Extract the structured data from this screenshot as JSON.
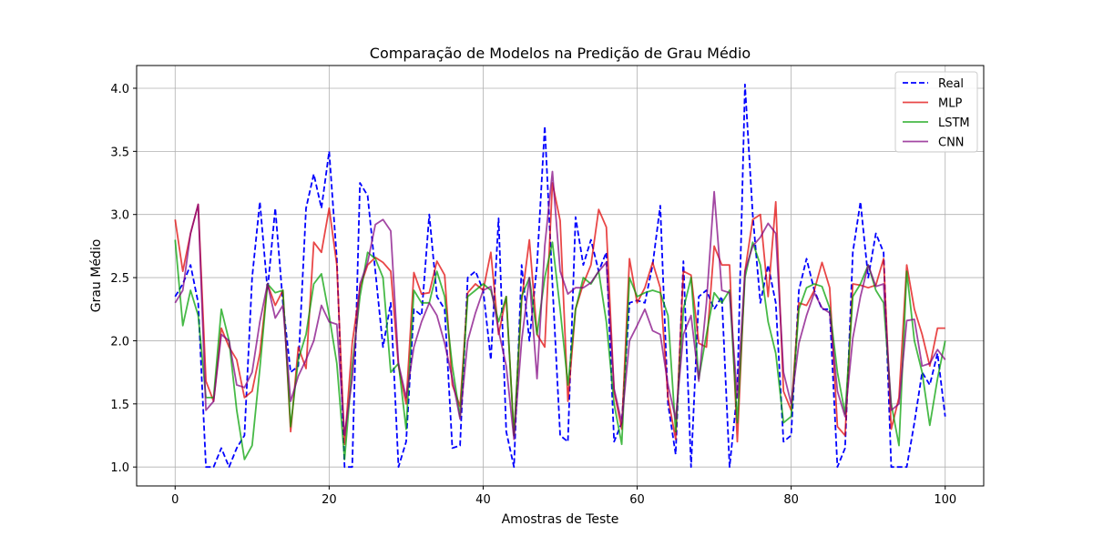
{
  "chart_data": {
    "type": "line",
    "title": "Comparação de Modelos na Predição de Grau Médio",
    "xlabel": "Amostras de Teste",
    "ylabel": "Grau Médio",
    "xlim": [
      -5,
      105
    ],
    "ylim": [
      0.85,
      4.18
    ],
    "xticks": [
      0,
      20,
      40,
      60,
      80,
      100
    ],
    "yticks": [
      1.0,
      1.5,
      2.0,
      2.5,
      3.0,
      3.5,
      4.0
    ],
    "ytick_labels": [
      "1.0",
      "1.5",
      "2.0",
      "2.5",
      "3.0",
      "3.5",
      "4.0"
    ],
    "grid": true,
    "legend_position": "top-right",
    "series": [
      {
        "name": "Real",
        "color": "#0000ff",
        "style": "dashed",
        "opacity": 1,
        "values": [
          2.35,
          2.45,
          2.6,
          2.3,
          1.0,
          1.0,
          1.15,
          1.0,
          1.15,
          1.25,
          2.5,
          3.1,
          2.4,
          3.05,
          2.3,
          1.75,
          1.8,
          3.05,
          3.32,
          3.05,
          3.5,
          2.65,
          1.0,
          1.0,
          3.25,
          3.15,
          2.55,
          1.95,
          2.3,
          1.0,
          1.2,
          2.25,
          2.2,
          3.0,
          2.35,
          2.25,
          1.15,
          1.17,
          2.5,
          2.55,
          2.4,
          1.85,
          2.97,
          1.28,
          1.0,
          2.6,
          2.0,
          2.6,
          3.7,
          2.45,
          1.25,
          1.2,
          2.98,
          2.6,
          2.8,
          2.55,
          2.7,
          1.2,
          1.35,
          2.3,
          2.32,
          2.3,
          2.6,
          3.07,
          1.5,
          1.1,
          2.63,
          1.0,
          2.35,
          2.4,
          2.25,
          2.35,
          1.0,
          1.6,
          4.03,
          3.0,
          2.3,
          2.6,
          2.3,
          1.2,
          1.25,
          2.4,
          2.65,
          2.4,
          2.25,
          2.25,
          1.0,
          1.15,
          2.7,
          3.1,
          2.5,
          2.85,
          2.7,
          1.0,
          1.0,
          1.0,
          1.35,
          1.75,
          1.65,
          1.9,
          1.4
        ]
      },
      {
        "name": "MLP",
        "color": "#e00000",
        "style": "solid",
        "opacity": 0.72,
        "values": [
          2.96,
          2.55,
          2.85,
          3.08,
          1.68,
          1.52,
          2.1,
          1.95,
          1.85,
          1.55,
          1.6,
          1.9,
          2.45,
          2.28,
          2.4,
          1.28,
          1.95,
          1.78,
          2.78,
          2.7,
          3.05,
          2.6,
          1.18,
          1.98,
          2.42,
          2.6,
          2.66,
          2.62,
          2.55,
          1.8,
          1.5,
          2.54,
          2.37,
          2.38,
          2.63,
          2.52,
          1.65,
          1.48,
          2.38,
          2.45,
          2.4,
          2.7,
          2.05,
          2.35,
          1.25,
          2.32,
          2.8,
          2.05,
          1.95,
          3.25,
          2.95,
          1.52,
          2.25,
          2.45,
          2.6,
          3.04,
          2.9,
          1.6,
          1.3,
          2.65,
          2.3,
          2.42,
          2.62,
          2.42,
          1.55,
          1.22,
          2.55,
          2.52,
          1.98,
          1.95,
          2.75,
          2.6,
          2.6,
          1.2,
          2.55,
          2.96,
          3.0,
          2.35,
          3.1,
          1.6,
          1.45,
          2.3,
          2.28,
          2.4,
          2.62,
          2.42,
          1.32,
          1.25,
          2.45,
          2.44,
          2.42,
          2.44,
          2.65,
          1.3,
          1.55,
          2.6,
          2.25,
          2.05,
          1.8,
          2.1,
          2.1
        ]
      },
      {
        "name": "LSTM",
        "color": "#00a000",
        "style": "solid",
        "opacity": 0.72,
        "values": [
          2.8,
          2.12,
          2.4,
          2.2,
          1.55,
          1.55,
          2.25,
          2.0,
          1.45,
          1.06,
          1.17,
          1.78,
          2.45,
          2.38,
          2.4,
          1.32,
          1.85,
          2.05,
          2.45,
          2.53,
          2.2,
          1.82,
          1.06,
          1.8,
          2.35,
          2.7,
          2.65,
          2.5,
          1.75,
          1.82,
          1.3,
          2.4,
          2.3,
          2.3,
          2.55,
          2.35,
          1.8,
          1.4,
          2.35,
          2.4,
          2.45,
          2.4,
          2.15,
          2.35,
          1.25,
          2.35,
          2.5,
          2.05,
          2.5,
          2.78,
          2.25,
          1.65,
          2.25,
          2.5,
          2.45,
          2.55,
          2.15,
          1.5,
          1.18,
          2.5,
          2.35,
          2.38,
          2.4,
          2.38,
          2.2,
          1.28,
          2.25,
          2.5,
          1.7,
          2.05,
          2.38,
          2.3,
          2.4,
          1.35,
          2.5,
          2.78,
          2.6,
          2.15,
          1.9,
          1.35,
          1.4,
          2.25,
          2.42,
          2.45,
          2.43,
          2.26,
          1.75,
          1.42,
          2.35,
          2.45,
          2.6,
          2.4,
          2.3,
          1.5,
          1.17,
          2.55,
          2.0,
          1.75,
          1.33,
          1.7,
          2.0
        ]
      },
      {
        "name": "CNN",
        "color": "#800080",
        "style": "solid",
        "opacity": 0.72,
        "values": [
          2.3,
          2.4,
          2.85,
          3.08,
          1.45,
          1.52,
          2.05,
          2.0,
          1.65,
          1.63,
          1.75,
          2.15,
          2.45,
          2.18,
          2.28,
          1.52,
          1.72,
          1.85,
          2.0,
          2.28,
          2.15,
          2.13,
          1.25,
          1.7,
          2.45,
          2.62,
          2.92,
          2.96,
          2.87,
          1.82,
          1.55,
          1.95,
          2.15,
          2.3,
          2.2,
          1.98,
          1.7,
          1.38,
          2.0,
          2.22,
          2.4,
          2.43,
          2.08,
          1.8,
          1.22,
          2.0,
          2.5,
          1.7,
          2.75,
          3.34,
          2.55,
          2.37,
          2.42,
          2.42,
          2.46,
          2.55,
          2.62,
          1.62,
          1.35,
          2.0,
          2.12,
          2.25,
          2.08,
          2.05,
          1.65,
          1.38,
          2.05,
          2.2,
          1.68,
          2.3,
          3.18,
          2.4,
          2.38,
          1.55,
          2.55,
          2.75,
          2.82,
          2.93,
          2.85,
          1.75,
          1.5,
          1.98,
          2.2,
          2.38,
          2.26,
          2.22,
          1.6,
          1.4,
          2.02,
          2.35,
          2.6,
          2.43,
          2.45,
          1.45,
          1.5,
          2.16,
          2.17,
          1.8,
          1.82,
          1.93,
          1.85
        ]
      }
    ]
  }
}
